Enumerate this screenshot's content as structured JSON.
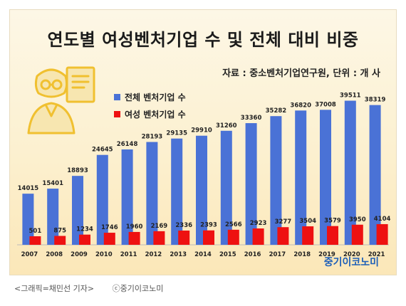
{
  "chart_data": {
    "type": "bar",
    "title": "연도별 여성벤처기업 수 및 전체 대비 비중",
    "source_note": "자료 : 중소벤처기업연구원, 단위 : 개 사",
    "categories": [
      "2007",
      "2008",
      "2009",
      "2010",
      "2011",
      "2012",
      "2013",
      "2014",
      "2015",
      "2016",
      "2017",
      "2018",
      "2019",
      "2020",
      "2021"
    ],
    "series": [
      {
        "name": "전체 벤처기업 수",
        "color": "#4a72d6",
        "values": [
          14015,
          15401,
          18893,
          24645,
          26148,
          28193,
          29135,
          29910,
          31260,
          33360,
          35282,
          36820,
          37008,
          39511,
          38319
        ]
      },
      {
        "name": "여성 벤처기업 수",
        "color": "#ee1111",
        "values": [
          501,
          875,
          1234,
          1746,
          1960,
          2169,
          2336,
          2393,
          2566,
          2923,
          3277,
          3504,
          3579,
          3950,
          4104
        ]
      }
    ],
    "legend_position": "top-left",
    "grid": false
  },
  "brand": "중기이코노미",
  "caption": {
    "credit": "<그래픽=채민선 기자>",
    "copyright": "ⓒ중기이코노미"
  }
}
